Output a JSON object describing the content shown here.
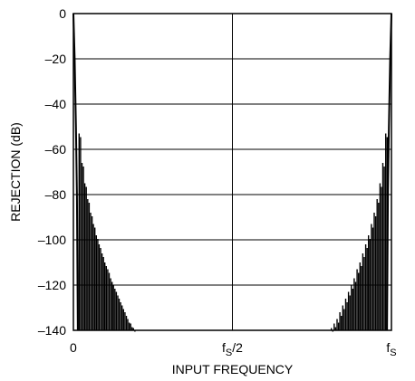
{
  "chart_data": {
    "type": "line",
    "title": "",
    "xlabel": "INPUT FREQUENCY",
    "ylabel": "REJECTION (dB)",
    "ylim": [
      -140,
      0
    ],
    "yticks": [
      0,
      -20,
      -40,
      -60,
      -80,
      -100,
      -120,
      -140
    ],
    "ytick_labels": [
      "0",
      "–20",
      "–40",
      "–60",
      "–80",
      "–100",
      "–120",
      "–140"
    ],
    "xlim": [
      0,
      1
    ],
    "xticks": [
      {
        "value": 0,
        "main": "0",
        "sub": "",
        "after": ""
      },
      {
        "value": 0.5,
        "main": "f",
        "sub": "S",
        "after": "/2"
      },
      {
        "value": 1,
        "main": "f",
        "sub": "S",
        "after": ""
      }
    ],
    "grid": true,
    "series": [
      {
        "values_left_sidelobe_peaks": [
          {
            "x": 0.018,
            "y": -53
          },
          {
            "x": 0.027,
            "y": -66
          },
          {
            "x": 0.036,
            "y": -75
          },
          {
            "x": 0.045,
            "y": -82
          },
          {
            "x": 0.054,
            "y": -88
          },
          {
            "x": 0.063,
            "y": -93
          },
          {
            "x": 0.072,
            "y": -98
          },
          {
            "x": 0.081,
            "y": -102
          },
          {
            "x": 0.09,
            "y": -106
          },
          {
            "x": 0.099,
            "y": -110
          },
          {
            "x": 0.108,
            "y": -113
          },
          {
            "x": 0.117,
            "y": -117
          },
          {
            "x": 0.126,
            "y": -120
          },
          {
            "x": 0.135,
            "y": -123
          },
          {
            "x": 0.144,
            "y": -126
          },
          {
            "x": 0.153,
            "y": -129
          },
          {
            "x": 0.162,
            "y": -132
          },
          {
            "x": 0.171,
            "y": -135
          },
          {
            "x": 0.18,
            "y": -137
          },
          {
            "x": 0.189,
            "y": -139
          }
        ],
        "values_right_sidelobe_peaks": [
          {
            "x": 0.982,
            "y": -53
          },
          {
            "x": 0.973,
            "y": -66
          },
          {
            "x": 0.964,
            "y": -75
          },
          {
            "x": 0.955,
            "y": -82
          },
          {
            "x": 0.946,
            "y": -88
          },
          {
            "x": 0.937,
            "y": -93
          },
          {
            "x": 0.928,
            "y": -98
          },
          {
            "x": 0.919,
            "y": -102
          },
          {
            "x": 0.91,
            "y": -106
          },
          {
            "x": 0.901,
            "y": -110
          },
          {
            "x": 0.892,
            "y": -113
          },
          {
            "x": 0.883,
            "y": -117
          },
          {
            "x": 0.874,
            "y": -120
          },
          {
            "x": 0.865,
            "y": -123
          },
          {
            "x": 0.856,
            "y": -126
          },
          {
            "x": 0.847,
            "y": -129
          },
          {
            "x": 0.838,
            "y": -132
          },
          {
            "x": 0.829,
            "y": -135
          },
          {
            "x": 0.82,
            "y": -137
          },
          {
            "x": 0.811,
            "y": -139
          }
        ],
        "main_lobe_left": [
          {
            "x": 0.0,
            "y": 0
          },
          {
            "x": 0.004,
            "y": -20
          },
          {
            "x": 0.008,
            "y": -50
          },
          {
            "x": 0.011,
            "y": -80
          },
          {
            "x": 0.014,
            "y": -140
          }
        ],
        "main_lobe_right": [
          {
            "x": 1.0,
            "y": 0
          },
          {
            "x": 0.996,
            "y": -20
          },
          {
            "x": 0.992,
            "y": -50
          },
          {
            "x": 0.989,
            "y": -80
          },
          {
            "x": 0.986,
            "y": -140
          }
        ]
      }
    ]
  }
}
